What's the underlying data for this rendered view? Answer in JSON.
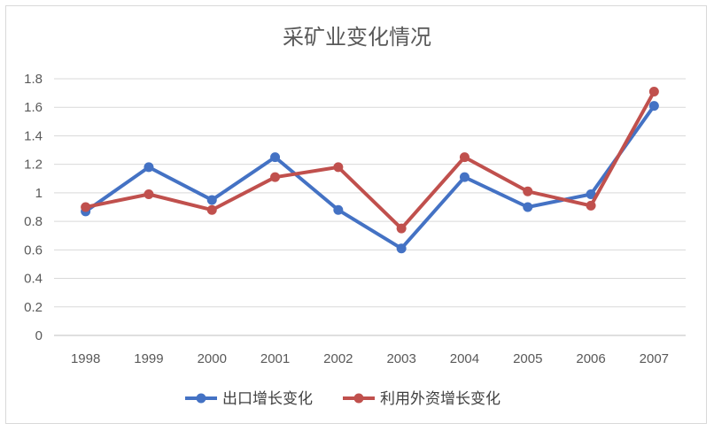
{
  "chart_data": {
    "type": "line",
    "title": "采矿业变化情况",
    "categories": [
      "1998",
      "1999",
      "2000",
      "2001",
      "2002",
      "2003",
      "2004",
      "2005",
      "2006",
      "2007"
    ],
    "y_ticks": [
      "0",
      "0.2",
      "0.4",
      "0.6",
      "0.8",
      "1",
      "1.2",
      "1.4",
      "1.6",
      "1.8"
    ],
    "ylim": [
      0,
      1.8
    ],
    "grid": true,
    "legend_position": "bottom",
    "series": [
      {
        "name": "出口增长变化",
        "color": "#4472c4",
        "values": [
          0.87,
          1.18,
          0.95,
          1.25,
          0.88,
          0.61,
          1.11,
          0.9,
          0.99,
          1.61
        ]
      },
      {
        "name": "利用外资增长变化",
        "color": "#c0504d",
        "values": [
          0.9,
          0.99,
          0.88,
          1.11,
          1.18,
          0.75,
          1.25,
          1.01,
          0.91,
          1.71
        ]
      }
    ]
  }
}
